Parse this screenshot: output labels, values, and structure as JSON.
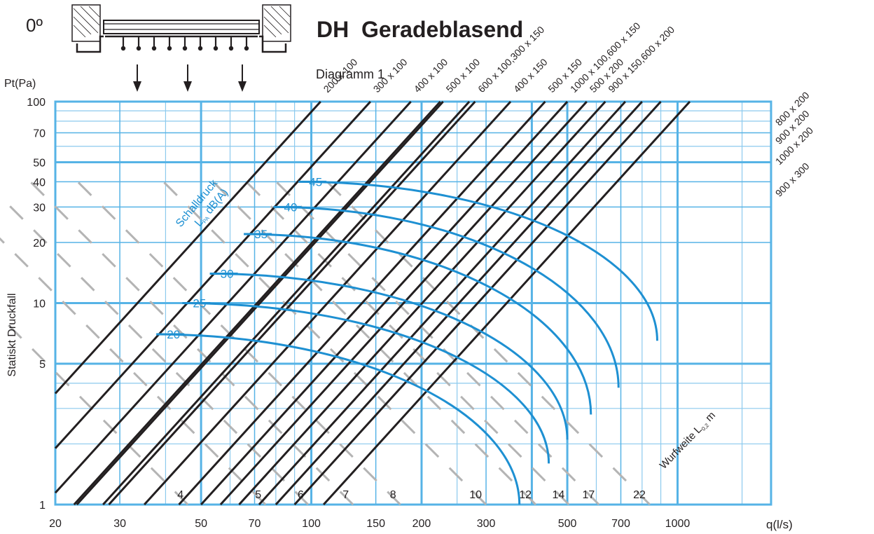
{
  "header": {
    "angle_label": "0º",
    "title": "DH  Geradeblasend",
    "diagram_label": "Diagramm 1"
  },
  "axes": {
    "y_unit": "Pt(Pa)",
    "y_title": "Statiskt Druckfall",
    "x_unit": "q(l/s)"
  },
  "sound_label": {
    "line1": "Schalldruck",
    "prefix": "L",
    "sub": "PA",
    "suffix": " dB(A)"
  },
  "throw_label": {
    "prefix": "Wurfweite L",
    "sub": "0,2",
    "suffix": " m"
  },
  "colors": {
    "grid_major": "#56b3e6",
    "grid_minor": "#8ccaee",
    "diffuser_line": "#231f20",
    "throw_line": "#b4b4b4",
    "sound_curve": "#1e90d2",
    "sound_text": "#1e90d2"
  },
  "chart_data": {
    "type": "line",
    "x_scale": "log",
    "y_scale": "log",
    "xlim": [
      20,
      1800
    ],
    "ylim": [
      1,
      100
    ],
    "x_ticks": [
      20,
      30,
      50,
      70,
      100,
      150,
      200,
      300,
      500,
      700,
      1000
    ],
    "x_tick_labels": [
      "20",
      "30",
      "50",
      "70",
      "100",
      "150",
      "200",
      "300",
      "500",
      "700",
      "1000"
    ],
    "y_ticks": [
      1,
      5,
      10,
      20,
      30,
      40,
      50,
      70,
      100
    ],
    "y_tick_labels": [
      "1",
      "5",
      "10",
      "20",
      "30",
      "40",
      "50",
      "70",
      "100"
    ],
    "grid": true,
    "diffuser_sizes": [
      {
        "label": "200 x 100",
        "q_at_100": 106
      },
      {
        "label": "300 x 100",
        "q_at_100": 145
      },
      {
        "label": "400 x 100",
        "q_at_100": 187
      },
      {
        "label": "500 x 100",
        "q_at_100": 229
      },
      {
        "label": "600 x 100,300 x 150",
        "q_at_100": 280
      },
      {
        "label": "400 x 150",
        "q_at_100": 350
      },
      {
        "label": "500 x 150",
        "q_at_100": 435
      },
      {
        "label": "1000 x 100,600 x 150",
        "q_at_100": 500
      },
      {
        "label": "500 x 200",
        "q_at_100": 565
      },
      {
        "label": "900 x 150,600 x 200",
        "q_at_100": 635
      },
      {
        "label": "800 x 200",
        "q_at_100": 720
      },
      {
        "label": "900 x 200",
        "q_at_100": 800
      },
      {
        "label": "1000 x 200",
        "q_at_100": 900
      },
      {
        "label": "900 x 300",
        "q_at_100": 1080
      }
    ],
    "extra_lines_q_at_1": [
      22.5,
      27
    ],
    "throw_lines": [
      {
        "label": "4",
        "q_at_1": 46
      },
      {
        "label": "5",
        "q_at_1": 75
      },
      {
        "label": "6",
        "q_at_1": 98
      },
      {
        "label": "7",
        "q_at_1": 130
      },
      {
        "label": "8",
        "q_at_1": 175
      },
      {
        "label": "10",
        "q_at_1": 300
      },
      {
        "label": "12",
        "q_at_1": 410
      },
      {
        "label": "14",
        "q_at_1": 505
      },
      {
        "label": "17",
        "q_at_1": 610
      },
      {
        "label": "22",
        "q_at_1": 840
      }
    ],
    "sound_curves": [
      {
        "label": "20",
        "q_start": 45,
        "p": 7,
        "q_end": 370,
        "p_end": 1
      },
      {
        "label": "25",
        "q_start": 53,
        "p": 10,
        "q_end": 445,
        "p_end": 1.6
      },
      {
        "label": "30",
        "q_start": 63,
        "p": 14,
        "q_end": 500,
        "p_end": 2.1
      },
      {
        "label": "35",
        "q_start": 78,
        "p": 22,
        "q_end": 580,
        "p_end": 2.8
      },
      {
        "label": "40",
        "q_start": 94,
        "p": 30,
        "q_end": 690,
        "p_end": 3.8
      },
      {
        "label": "45",
        "q_start": 110,
        "p": 40,
        "q_end": 880,
        "p_end": 6.5
      }
    ]
  }
}
